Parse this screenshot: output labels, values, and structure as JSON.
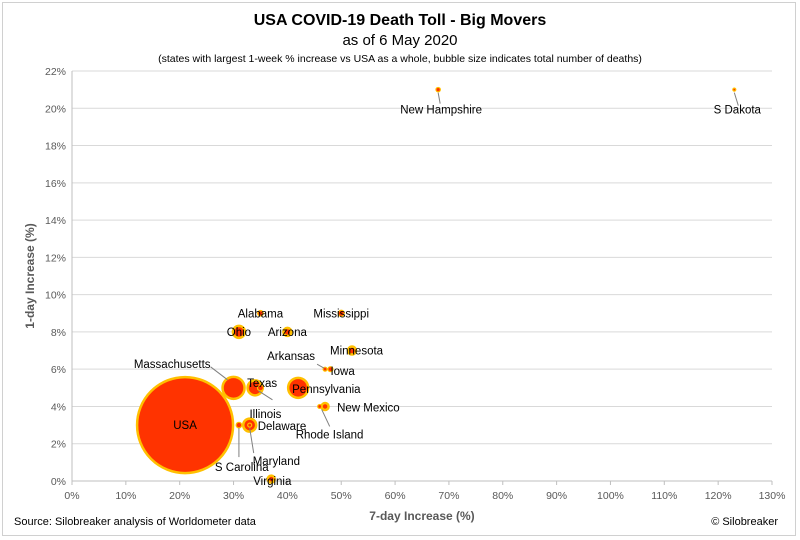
{
  "chart_data": {
    "type": "scatter",
    "bubble": true,
    "title": "USA COVID-19 Death Toll - Big Movers",
    "subtitle": "as of 6 May 2020",
    "note": "(states with largest 1-week % increase vs USA as a whole, bubble size indicates total number of deaths)",
    "xlabel": "7-day Increase (%)",
    "ylabel": "1-day Increase (%)",
    "xlim": [
      0,
      130
    ],
    "ylim": [
      0,
      22
    ],
    "x_ticks": [
      "0%",
      "10%",
      "20%",
      "30%",
      "40%",
      "50%",
      "60%",
      "70%",
      "80%",
      "90%",
      "100%",
      "110%",
      "120%",
      "130%"
    ],
    "y_ticks": [
      "0%",
      "2%",
      "4%",
      "6%",
      "8%",
      "10%",
      "12%",
      "14%",
      "16%",
      "18%",
      "20%",
      "22%"
    ],
    "grid": "horizontal",
    "points": [
      {
        "name": "USA",
        "x": 21,
        "y": 3.0,
        "r": 48
      },
      {
        "name": "New Hampshire",
        "x": 68,
        "y": 21.0,
        "r": 2.2
      },
      {
        "name": "S Dakota",
        "x": 123,
        "y": 21.0,
        "r": 1.5
      },
      {
        "name": "Alabama",
        "x": 35,
        "y": 9.0,
        "r": 2.8
      },
      {
        "name": "Mississippi",
        "x": 50,
        "y": 9.0,
        "r": 3
      },
      {
        "name": "Ohio",
        "x": 31,
        "y": 8.0,
        "r": 6
      },
      {
        "name": "Arizona",
        "x": 40,
        "y": 8.0,
        "r": 4
      },
      {
        "name": "Minnesota",
        "x": 52,
        "y": 7.0,
        "r": 4
      },
      {
        "name": "Arkansas",
        "x": 47,
        "y": 6.0,
        "r": 2
      },
      {
        "name": "Iowa",
        "x": 48,
        "y": 6.0,
        "r": 2.5
      },
      {
        "name": "Massachusetts",
        "x": 30,
        "y": 5.0,
        "r": 11
      },
      {
        "name": "Texas",
        "x": 34,
        "y": 5.0,
        "r": 7.5
      },
      {
        "name": "Pennsylvania",
        "x": 42,
        "y": 5.0,
        "r": 10
      },
      {
        "name": "New Mexico",
        "x": 47,
        "y": 4.0,
        "r": 3.5
      },
      {
        "name": "Illinois",
        "x": 35,
        "y": 5.0,
        "r": 3
      },
      {
        "name": "Rhode Island",
        "x": 46,
        "y": 4.0,
        "r": 2
      },
      {
        "name": "Delaware",
        "x": 33,
        "y": 3.0,
        "r": 6.5
      },
      {
        "name": "S Carolina",
        "x": 31,
        "y": 3.0,
        "r": 2.8
      },
      {
        "name": "Maryland",
        "x": 33,
        "y": 3.0,
        "r": 2
      },
      {
        "name": "Virginia",
        "x": 37,
        "y": 0.1,
        "r": 3.5
      }
    ],
    "colors": {
      "fill": "#ff3300",
      "edge": "#ffc000",
      "grid": "#d9d9d9",
      "axis": "#bfbfbf"
    }
  },
  "footer": {
    "source": "Source: Silobreaker analysis of Worldometer data",
    "credit": "© Silobreaker"
  }
}
